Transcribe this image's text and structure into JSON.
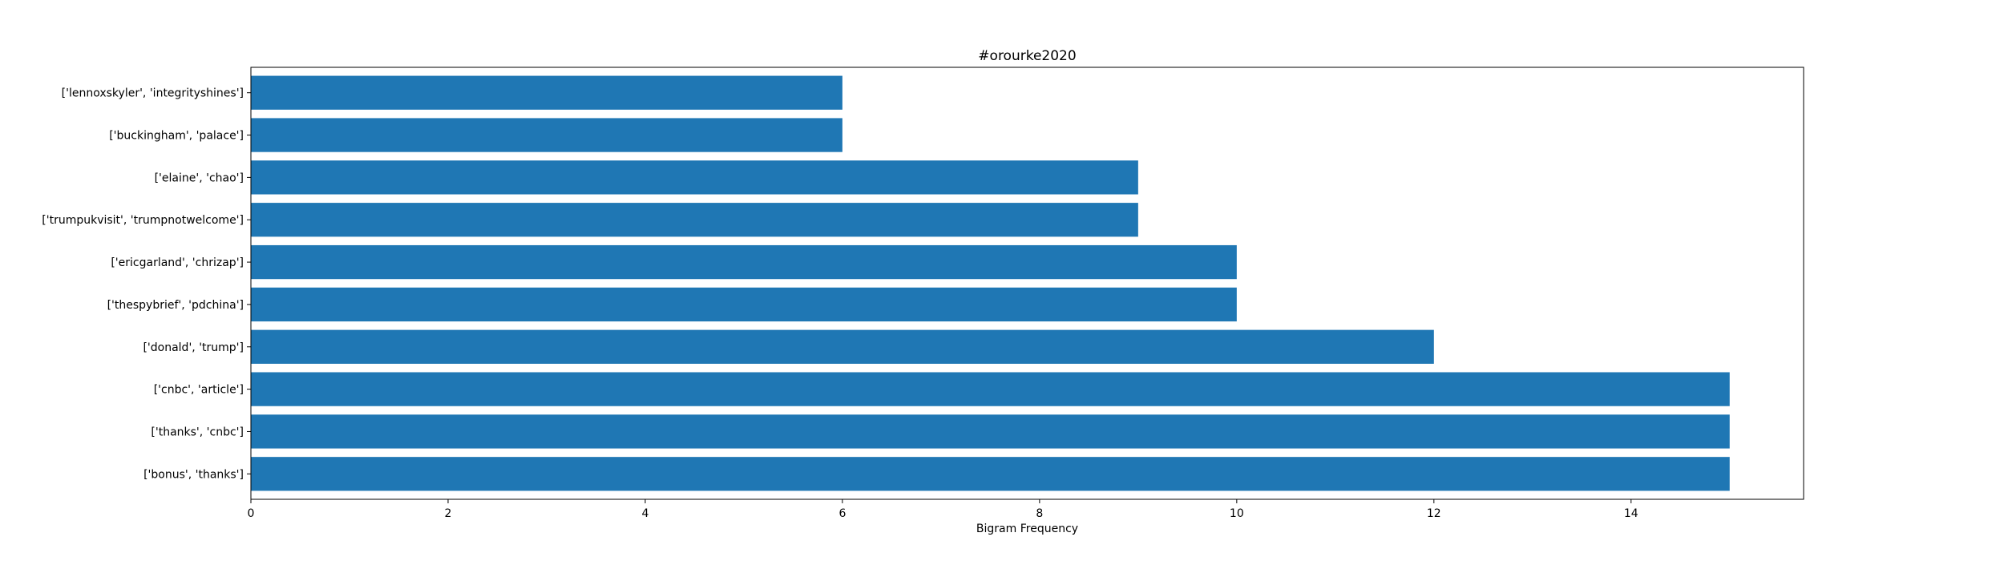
{
  "chart_data": {
    "type": "bar",
    "orientation": "horizontal",
    "title": "#orourke2020",
    "xlabel": "Bigram Frequency",
    "ylabel": "",
    "categories": [
      "['bonus', 'thanks']",
      "['thanks', 'cnbc']",
      "['cnbc', 'article']",
      "['donald', 'trump']",
      "['thespybrief', 'pdchina']",
      "['ericgarland', 'chrizap']",
      "['trumpukvisit', 'trumpnotwelcome']",
      "['elaine', 'chao']",
      "['buckingham', 'palace']",
      "['lennoxskyler', 'integrityshines']"
    ],
    "values": [
      15,
      15,
      15,
      12,
      10,
      10,
      9,
      9,
      6,
      6
    ],
    "xlim": [
      0,
      15.75
    ],
    "xticks": [
      0,
      2,
      4,
      6,
      8,
      10,
      12,
      14
    ],
    "grid": false,
    "bar_color": "#1f77b4"
  }
}
